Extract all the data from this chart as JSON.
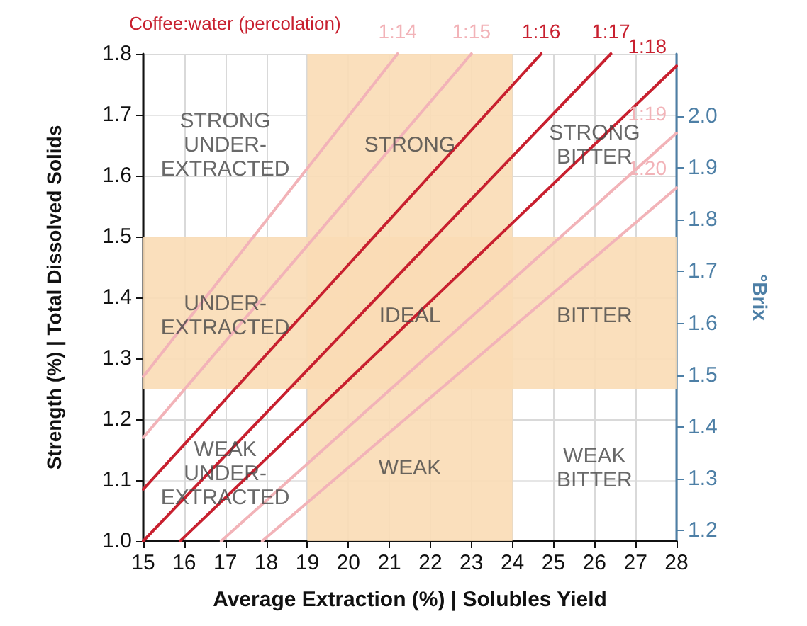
{
  "chart_data": {
    "type": "line",
    "xlabel": "Average Extraction (%) | Solubles Yield",
    "ylabel": "Strength (%) | Total Dissolved Solids",
    "y2label": "°Brix",
    "legend_title": "Coffee:water (percolation)",
    "xlim": [
      15,
      28
    ],
    "xticks": [
      15,
      16,
      17,
      18,
      19,
      20,
      21,
      22,
      23,
      24,
      25,
      26,
      27,
      28
    ],
    "ylim": [
      1.0,
      1.8
    ],
    "yticks": [
      {
        "value": 1.0,
        "label": "1.0"
      },
      1.1,
      1.2,
      1.3,
      1.4,
      1.5,
      1.6,
      1.7,
      1.8
    ],
    "y2lim": [
      1.18,
      2.12
    ],
    "y2ticks": [
      1.2,
      1.3,
      1.4,
      1.5,
      1.6,
      1.7,
      1.8,
      1.9,
      {
        "value": 2.0,
        "label": "2.0"
      }
    ],
    "grid": true,
    "legend": false,
    "marker": "none",
    "line_style": "solid",
    "series": [
      {
        "name": "1:14",
        "color": "#f2b3b8",
        "x": [
          15,
          21.2
        ],
        "values": [
          1.27,
          1.8
        ]
      },
      {
        "name": "1:15",
        "color": "#f2b3b8",
        "x": [
          15,
          23.0
        ],
        "values": [
          1.17,
          1.8
        ]
      },
      {
        "name": "1:16",
        "color": "#c8202f",
        "x": [
          15,
          24.7
        ],
        "values": [
          1.085,
          1.8
        ]
      },
      {
        "name": "1:17",
        "color": "#c8202f",
        "x": [
          15,
          26.4
        ],
        "values": [
          1.0,
          1.8
        ]
      },
      {
        "name": "1:18",
        "color": "#c8202f",
        "x": [
          15.9,
          28
        ],
        "values": [
          1.0,
          1.78
        ]
      },
      {
        "name": "1:19",
        "color": "#f2b3b8",
        "x": [
          16.9,
          28
        ],
        "values": [
          1.0,
          1.67
        ]
      },
      {
        "name": "1:20",
        "color": "#f2b3b8",
        "x": [
          17.9,
          28
        ],
        "values": [
          1.0,
          1.58
        ]
      }
    ],
    "bands": [
      {
        "axis": "x",
        "from": 19,
        "to": 24,
        "color": "#f9dcb5"
      },
      {
        "axis": "y",
        "from": 1.25,
        "to": 1.5,
        "color": "#f9dcb5"
      }
    ],
    "annotations": [
      "STRONG\nUNDER-\nEXTRACTED",
      "STRONG",
      "STRONG\nBITTER",
      "UNDER-\nEXTRACTED",
      "IDEAL",
      "BITTER",
      "WEAK\nUNDER-\nEXTRACTED",
      "WEAK",
      "WEAK\nBITTER"
    ]
  }
}
